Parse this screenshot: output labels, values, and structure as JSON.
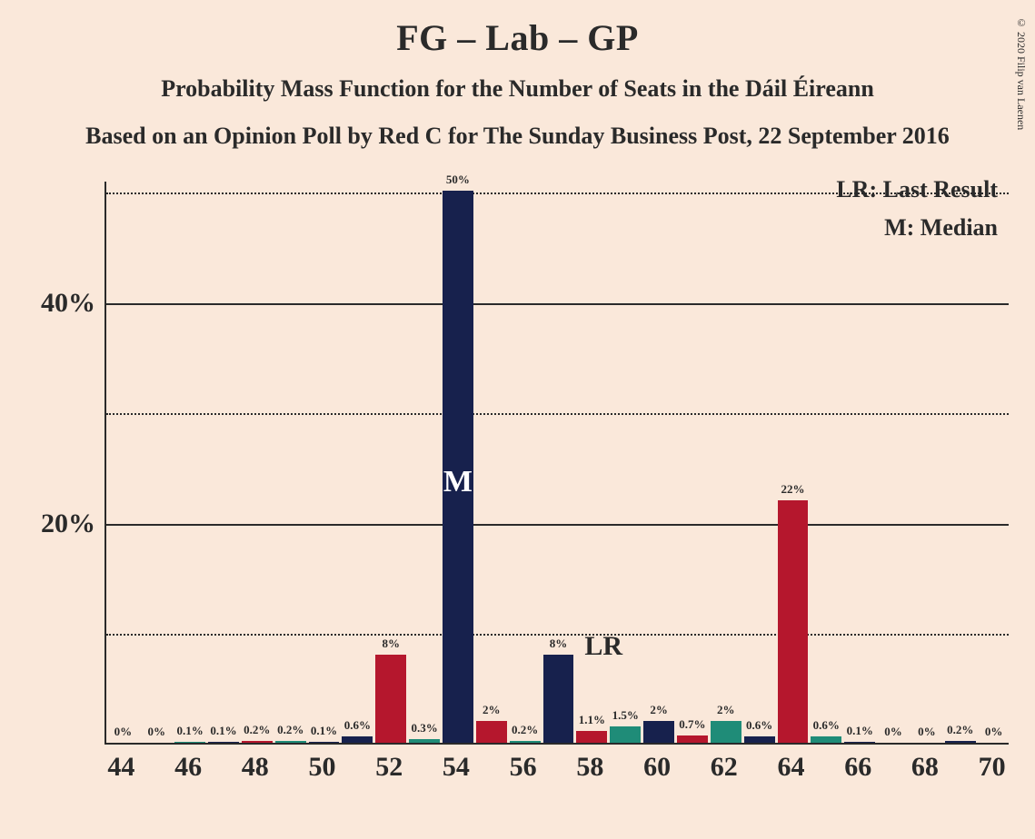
{
  "copyright": "© 2020 Filip van Laenen",
  "titles": {
    "main": "FG – Lab – GP",
    "sub1": "Probability Mass Function for the Number of Seats in the Dáil Éireann",
    "sub2": "Based on an Opinion Poll by Red C for The Sunday Business Post, 22 September 2016"
  },
  "legend": {
    "lr": "LR: Last Result",
    "m": "M: Median"
  },
  "chart": {
    "type": "bar",
    "background_color": "#fae8da",
    "axis_color": "#2a2a2a",
    "grid_solid_color": "#2a2a2a",
    "grid_dotted_color": "#2a2a2a",
    "ylim": [
      0,
      51
    ],
    "ytick_major": [
      20,
      40
    ],
    "ytick_minor": [
      10,
      30,
      50
    ],
    "ytick_labels": {
      "20": "20%",
      "40": "40%"
    },
    "x_range": [
      44,
      70
    ],
    "x_tick_step": 2,
    "bar_colors": {
      "navy": "#17214d",
      "red": "#b5172d",
      "teal": "#1f8c78"
    },
    "bar_width_ratio": 0.92,
    "bars": [
      {
        "x": 44,
        "value": 0,
        "label": "0%",
        "color": "navy"
      },
      {
        "x": 45,
        "value": 0,
        "label": "0%",
        "color": "red"
      },
      {
        "x": 46,
        "value": 0.1,
        "label": "0.1%",
        "color": "teal"
      },
      {
        "x": 47,
        "value": 0.1,
        "label": "0.1%",
        "color": "navy"
      },
      {
        "x": 48,
        "value": 0.2,
        "label": "0.2%",
        "color": "red"
      },
      {
        "x": 49,
        "value": 0.2,
        "label": "0.2%",
        "color": "teal"
      },
      {
        "x": 50,
        "value": 0.1,
        "label": "0.1%",
        "color": "navy"
      },
      {
        "x": 51,
        "value": 0.6,
        "label": "0.6%",
        "color": "navy"
      },
      {
        "x": 52,
        "value": 8,
        "label": "8%",
        "color": "red"
      },
      {
        "x": 53,
        "value": 0.3,
        "label": "0.3%",
        "color": "teal"
      },
      {
        "x": 54,
        "value": 50,
        "label": "50%",
        "color": "navy"
      },
      {
        "x": 55,
        "value": 2,
        "label": "2%",
        "color": "red"
      },
      {
        "x": 56,
        "value": 0.2,
        "label": "0.2%",
        "color": "teal"
      },
      {
        "x": 57,
        "value": 8,
        "label": "8%",
        "color": "navy"
      },
      {
        "x": 58,
        "value": 1.1,
        "label": "1.1%",
        "color": "red"
      },
      {
        "x": 59,
        "value": 1.5,
        "label": "1.5%",
        "color": "teal"
      },
      {
        "x": 60,
        "value": 2,
        "label": "2%",
        "color": "navy"
      },
      {
        "x": 61,
        "value": 0.7,
        "label": "0.7%",
        "color": "red"
      },
      {
        "x": 62,
        "value": 2,
        "label": "2%",
        "color": "teal"
      },
      {
        "x": 63,
        "value": 0.6,
        "label": "0.6%",
        "color": "navy"
      },
      {
        "x": 64,
        "value": 22,
        "label": "22%",
        "color": "red"
      },
      {
        "x": 65,
        "value": 0.6,
        "label": "0.6%",
        "color": "teal"
      },
      {
        "x": 66,
        "value": 0.1,
        "label": "0.1%",
        "color": "navy"
      },
      {
        "x": 67,
        "value": 0,
        "label": "0%",
        "color": "red"
      },
      {
        "x": 68,
        "value": 0,
        "label": "0%",
        "color": "teal"
      },
      {
        "x": 69,
        "value": 0.2,
        "label": "0.2%",
        "color": "navy"
      },
      {
        "x": 70,
        "value": 0,
        "label": "0%",
        "color": "red"
      }
    ],
    "median_marker": {
      "x": 54,
      "label": "M"
    },
    "lr_marker": {
      "x": 58,
      "label": "LR"
    },
    "x_labels": {
      "44": "44",
      "46": "46",
      "48": "48",
      "50": "50",
      "52": "52",
      "54": "54",
      "56": "56",
      "58": "58",
      "60": "60",
      "62": "62",
      "64": "64",
      "66": "66",
      "68": "68",
      "70": "70"
    }
  }
}
